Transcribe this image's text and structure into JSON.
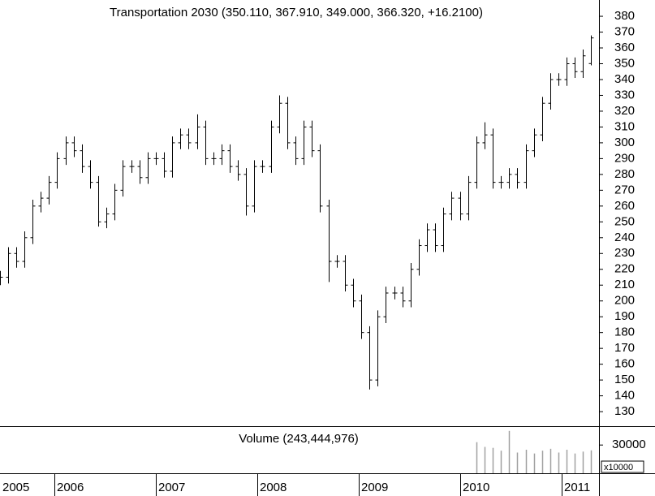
{
  "chart_data": [
    {
      "type": "ohlc",
      "title": "Transportation 2030 (350.110, 367.910, 349.000, 366.320, +16.2100)",
      "color": "#000000",
      "x": [
        2005.46,
        2005.541,
        2005.622,
        2005.703,
        2005.784,
        2005.865,
        2005.946,
        2006.027,
        2006.108,
        2006.189,
        2006.27,
        2006.351,
        2006.432,
        2006.513,
        2006.594,
        2006.675,
        2006.756,
        2006.837,
        2006.918,
        2006.999,
        2007.08,
        2007.161,
        2007.242,
        2007.323,
        2007.404,
        2007.485,
        2007.566,
        2007.647,
        2007.728,
        2007.809,
        2007.89,
        2007.971,
        2008.052,
        2008.133,
        2008.214,
        2008.295,
        2008.376,
        2008.457,
        2008.538,
        2008.619,
        2008.7,
        2008.781,
        2008.862,
        2008.943,
        2009.024,
        2009.105,
        2009.186,
        2009.267,
        2009.348,
        2009.429,
        2009.51,
        2009.591,
        2009.672,
        2009.753,
        2009.834,
        2009.915,
        2009.996,
        2010.077,
        2010.158,
        2010.239,
        2010.32,
        2010.401,
        2010.482,
        2010.563,
        2010.644,
        2010.725,
        2010.806,
        2010.887,
        2010.968,
        2011.049,
        2011.13,
        2011.211,
        2011.292
      ],
      "open": [
        212,
        215,
        230,
        225,
        240,
        260,
        265,
        275,
        290,
        300,
        295,
        285,
        275,
        250,
        255,
        270,
        285,
        285,
        278,
        290,
        290,
        282,
        300,
        305,
        300,
        310,
        290,
        290,
        295,
        285,
        280,
        260,
        285,
        285,
        310,
        325,
        300,
        290,
        310,
        295,
        260,
        225,
        225,
        210,
        200,
        180,
        150,
        190,
        205,
        205,
        200,
        220,
        235,
        245,
        235,
        255,
        265,
        255,
        275,
        300,
        305,
        275,
        275,
        280,
        275,
        295,
        305,
        325,
        340,
        340,
        350,
        345,
        350.11
      ],
      "high": [
        219,
        234,
        234,
        244,
        264,
        269,
        279,
        294,
        304,
        304,
        299,
        289,
        279,
        259,
        274,
        289,
        289,
        289,
        294,
        294,
        294,
        304,
        309,
        309,
        318,
        314,
        294,
        299,
        299,
        289,
        284,
        289,
        289,
        314,
        330,
        329,
        304,
        314,
        314,
        299,
        264,
        229,
        229,
        214,
        204,
        184,
        194,
        209,
        209,
        209,
        224,
        239,
        249,
        249,
        259,
        269,
        269,
        279,
        304,
        313,
        309,
        279,
        284,
        284,
        299,
        309,
        329,
        344,
        344,
        354,
        354,
        359,
        367.91
      ],
      "low": [
        210,
        211,
        221,
        221,
        236,
        256,
        261,
        271,
        286,
        291,
        281,
        271,
        247,
        246,
        251,
        266,
        281,
        274,
        274,
        286,
        278,
        278,
        296,
        296,
        296,
        286,
        286,
        286,
        281,
        276,
        254,
        256,
        281,
        281,
        306,
        296,
        286,
        286,
        291,
        256,
        212,
        221,
        206,
        196,
        176,
        144,
        146,
        186,
        201,
        196,
        196,
        216,
        231,
        231,
        231,
        251,
        251,
        251,
        271,
        296,
        271,
        271,
        271,
        271,
        271,
        291,
        301,
        321,
        336,
        336,
        341,
        341,
        349
      ],
      "close": [
        215,
        230,
        225,
        240,
        260,
        265,
        275,
        290,
        300,
        295,
        285,
        275,
        250,
        255,
        270,
        285,
        285,
        278,
        290,
        290,
        282,
        300,
        305,
        300,
        310,
        290,
        290,
        295,
        285,
        280,
        260,
        285,
        285,
        310,
        325,
        300,
        290,
        310,
        295,
        260,
        225,
        225,
        210,
        200,
        180,
        150,
        190,
        205,
        205,
        200,
        220,
        235,
        245,
        235,
        255,
        265,
        255,
        275,
        300,
        305,
        275,
        275,
        280,
        275,
        295,
        305,
        325,
        340,
        340,
        350,
        345,
        355,
        366.32
      ],
      "xlim": [
        2005.464,
        2011.368
      ],
      "ylim": [
        120.8,
        390.3
      ],
      "yticks": [
        130,
        140,
        150,
        160,
        170,
        180,
        190,
        200,
        210,
        220,
        230,
        240,
        250,
        260,
        270,
        280,
        290,
        300,
        310,
        320,
        330,
        340,
        350,
        360,
        370,
        380
      ]
    },
    {
      "type": "bar",
      "title": "Volume (243,444,976)",
      "color": "#a0a0a0",
      "annotation": "x10000",
      "x": [
        2010.158,
        2010.239,
        2010.32,
        2010.401,
        2010.482,
        2010.563,
        2010.644,
        2010.725,
        2010.806,
        2010.887,
        2010.968,
        2011.049,
        2011.13,
        2011.211,
        2011.292
      ],
      "values": [
        33000,
        28000,
        27000,
        24000,
        45000,
        22000,
        25000,
        21000,
        24000,
        26000,
        22000,
        25000,
        21000,
        23000,
        24344
      ],
      "xlim": [
        2005.464,
        2011.368
      ],
      "ylim": [
        0,
        50000
      ],
      "yticks": [
        30000
      ],
      "xticks": [
        2005,
        2006,
        2007,
        2008,
        2009,
        2010,
        2011
      ]
    }
  ]
}
